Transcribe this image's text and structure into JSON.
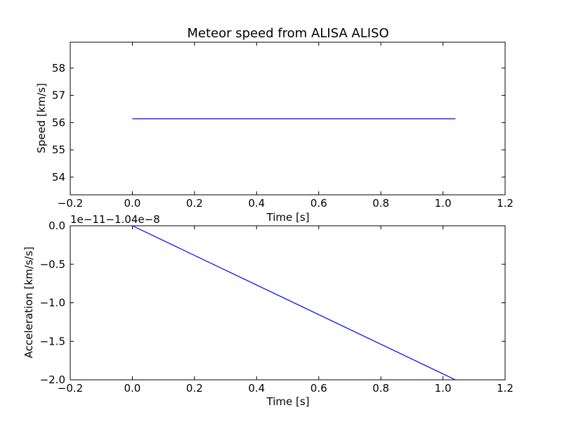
{
  "chart_data": [
    {
      "type": "line",
      "title": "Meteor speed from  ALISA ALISO",
      "xlabel": "Time [s]",
      "ylabel": "Speed [km/s]",
      "xlim": [
        -0.2,
        1.2
      ],
      "ylim": [
        53.35,
        58.95
      ],
      "xticks": [
        -0.2,
        0.0,
        0.2,
        0.4,
        0.6,
        0.8,
        1.0,
        1.2
      ],
      "xtick_labels": [
        "−0.2",
        "0.0",
        "0.2",
        "0.4",
        "0.6",
        "0.8",
        "1.0",
        "1.2"
      ],
      "yticks": [
        54,
        55,
        56,
        57,
        58
      ],
      "ytick_labels": [
        "54",
        "55",
        "56",
        "57",
        "58"
      ],
      "grid": false,
      "series": [
        {
          "color": "#0000ff",
          "x": [
            0.0,
            1.04
          ],
          "y": [
            56.14,
            56.14
          ]
        }
      ]
    },
    {
      "type": "line",
      "xlabel": "Time [s]",
      "ylabel": "Acceleration [km/s/s]",
      "offset_text": "1e−11−1.04e−8",
      "xlim": [
        -0.2,
        1.2
      ],
      "ylim": [
        -2.0,
        0.0
      ],
      "xticks": [
        -0.2,
        0.0,
        0.2,
        0.4,
        0.6,
        0.8,
        1.0,
        1.2
      ],
      "xtick_labels": [
        "−0.2",
        "0.0",
        "0.2",
        "0.4",
        "0.6",
        "0.8",
        "1.0",
        "1.2"
      ],
      "yticks": [
        0.0,
        -0.5,
        -1.0,
        -1.5,
        -2.0
      ],
      "ytick_labels": [
        "0.0",
        "−0.5",
        "−1.0",
        "−1.5",
        "−2.0"
      ],
      "grid": false,
      "series": [
        {
          "color": "#0000ff",
          "x": [
            0.0,
            1.04
          ],
          "y": [
            0.0,
            -2.0
          ]
        }
      ]
    }
  ]
}
